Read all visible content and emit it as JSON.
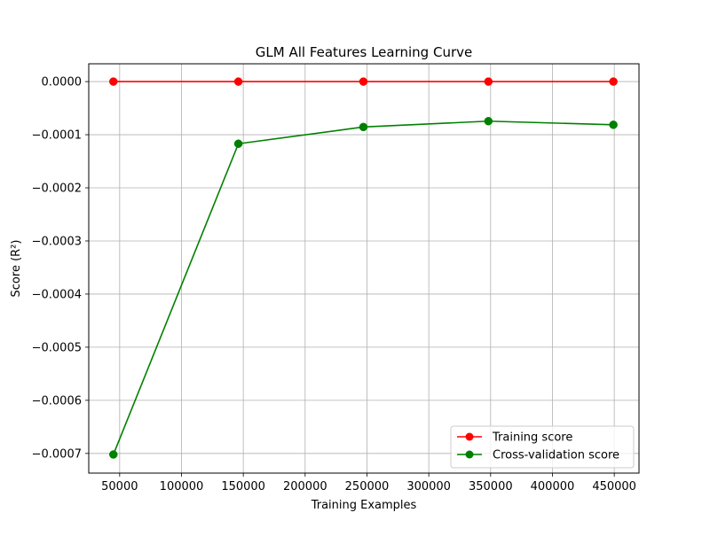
{
  "chart_data": {
    "type": "line",
    "title": "GLM All Features Learning Curve",
    "xlabel": "Training Examples",
    "ylabel": "Score (R²)",
    "x": [
      44927,
      146015,
      247104,
      348192,
      449281
    ],
    "series": [
      {
        "name": "Training score",
        "color": "#ff0000",
        "marker": "circle",
        "values": [
          0.0,
          0.0,
          0.0,
          0.0,
          0.0
        ]
      },
      {
        "name": "Cross-validation score",
        "color": "#008000",
        "marker": "circle",
        "values": [
          -0.000702,
          -0.000117,
          -8.55e-05,
          -7.45e-05,
          -8.13e-05
        ]
      }
    ],
    "xlim": [
      25000,
      470000
    ],
    "ylim": [
      -0.000737,
      3.35e-05
    ],
    "xticks": [
      50000,
      100000,
      150000,
      200000,
      250000,
      300000,
      350000,
      400000,
      450000
    ],
    "xtick_labels": [
      "50000",
      "100000",
      "150000",
      "200000",
      "250000",
      "300000",
      "350000",
      "400000",
      "450000"
    ],
    "yticks": [
      0.0,
      -0.0001,
      -0.0002,
      -0.0003,
      -0.0004,
      -0.0005,
      -0.0006,
      -0.0007
    ],
    "ytick_labels": [
      "0.0000",
      "−0.0001",
      "−0.0002",
      "−0.0003",
      "−0.0004",
      "−0.0005",
      "−0.0006",
      "−0.0007"
    ],
    "grid": true,
    "legend_position": "lower-right"
  }
}
